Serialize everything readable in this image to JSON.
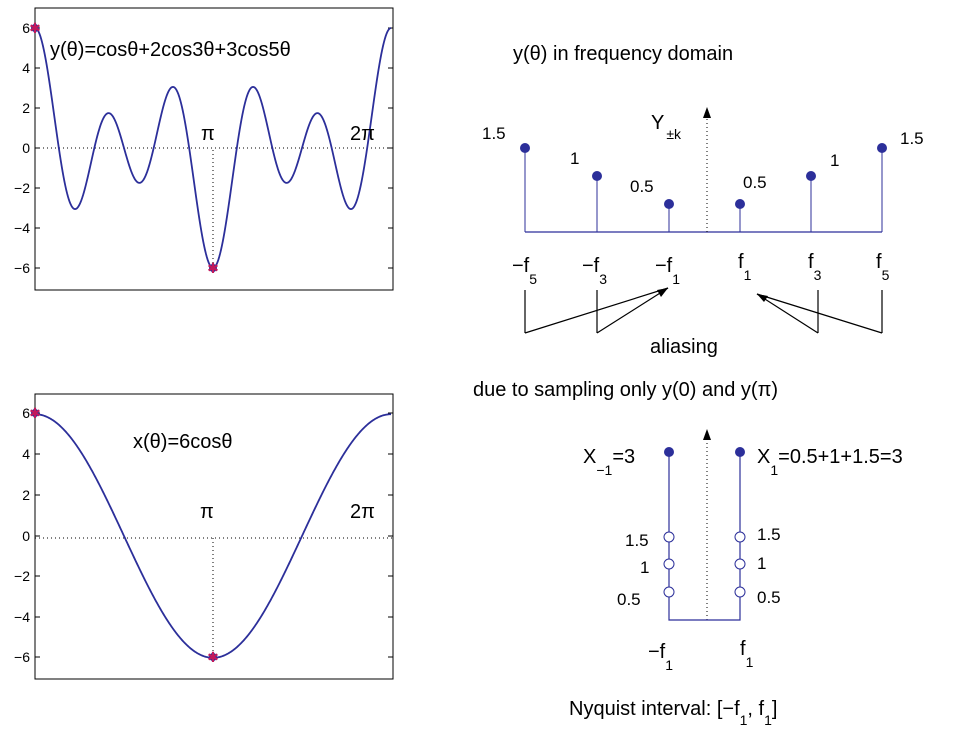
{
  "colors": {
    "curve": "#2c2f9a",
    "stem": "#2c2f9a",
    "marker_star": "#c2185b",
    "axis": "#000000"
  },
  "top_plot": {
    "formula": "y(θ)=cosθ+2cos3θ+3cos5θ",
    "pi_label": "π",
    "two_pi_label": "2π",
    "yticks": [
      "6",
      "4",
      "2",
      "0",
      "−2",
      "−4",
      "−6"
    ],
    "chart_data": {
      "type": "line",
      "function": "cos(t)+2cos(3t)+3cos(5t)",
      "xlim": [
        0,
        6.2832
      ],
      "ylim": [
        -7,
        7
      ],
      "samples_marked": [
        {
          "x": 0,
          "y": 6
        },
        {
          "x": 3.1416,
          "y": -6
        }
      ]
    }
  },
  "bottom_plot": {
    "formula": "x(θ)=6cosθ",
    "pi_label": "π",
    "two_pi_label": "2π",
    "yticks": [
      "6",
      "4",
      "2",
      "0",
      "−2",
      "−4",
      "−6"
    ],
    "chart_data": {
      "type": "line",
      "function": "6cos(t)",
      "xlim": [
        0,
        6.2832
      ],
      "ylim": [
        -7,
        7
      ],
      "samples_marked": [
        {
          "x": 0,
          "y": 6
        },
        {
          "x": 3.1416,
          "y": -6
        }
      ]
    }
  },
  "freq_spectrum": {
    "title": "y(θ) in frequency domain",
    "axis_label_main": "Y",
    "axis_label_sub": "±k",
    "stems": [
      {
        "freq": "−f",
        "freq_sub": "5",
        "value": 1.5,
        "value_label": "1.5"
      },
      {
        "freq": "−f",
        "freq_sub": "3",
        "value": 1,
        "value_label": "1"
      },
      {
        "freq": "−f",
        "freq_sub": "1",
        "value": 0.5,
        "value_label": "0.5"
      },
      {
        "freq": "f",
        "freq_sub": "1",
        "value": 0.5,
        "value_label": "0.5"
      },
      {
        "freq": "f",
        "freq_sub": "3",
        "value": 1,
        "value_label": "1"
      },
      {
        "freq": "f",
        "freq_sub": "5",
        "value": 1.5,
        "value_label": "1.5"
      }
    ],
    "aliasing_label": "aliasing"
  },
  "sampling_note": "due to sampling only y(0) and y(π)",
  "aliased_spectrum": {
    "left_label_main": "X",
    "left_label_sub": "−1",
    "left_label_rest": "=3",
    "right_label_main": "X",
    "right_label_sub": "1",
    "right_label_rest": "=0.5+1+1.5=3",
    "stack_labels_left": [
      "1.5",
      "1",
      "0.5"
    ],
    "stack_labels_right": [
      "1.5",
      "1",
      "0.5"
    ],
    "freq_left_main": "−f",
    "freq_left_sub": "1",
    "freq_right_main": "f",
    "freq_right_sub": "1"
  },
  "nyquist": {
    "prefix": "Nyquist interval: [−f",
    "sub1": "1",
    "mid": ", f",
    "sub2": "1",
    "suffix": "]"
  }
}
